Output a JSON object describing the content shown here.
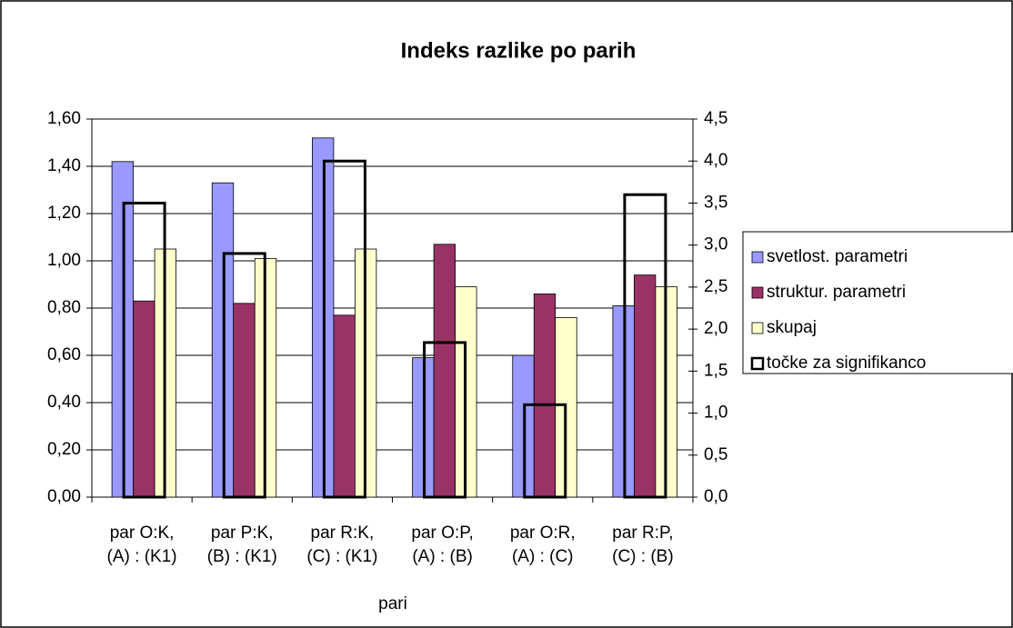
{
  "chart_data": {
    "type": "bar",
    "title": "Indeks razlike po parih",
    "x_label": "pari",
    "categories": [
      "par O:K,\n(A) : (K1)",
      "par P:K,\n(B) : (K1)",
      "par R:K,\n(C) : (K1)",
      "par O:P,\n(A) : (B)",
      "par O:R,\n(A) : (C)",
      "par R:P,\n(C) : (B)"
    ],
    "series": [
      {
        "name": "svetlost. parametri",
        "color": "#9999ff",
        "values": [
          1.42,
          1.33,
          1.52,
          0.59,
          0.6,
          0.81
        ]
      },
      {
        "name": "struktur. parametri",
        "color": "#993366",
        "values": [
          0.83,
          0.82,
          0.77,
          1.07,
          0.86,
          0.94
        ]
      },
      {
        "name": "skupaj",
        "color": "#ffffcc",
        "values": [
          1.05,
          1.01,
          1.05,
          0.89,
          0.76,
          0.89
        ]
      },
      {
        "name": "točke za signifikanco",
        "color": "#000000",
        "axis": "y2",
        "values": [
          3.5,
          2.9,
          4.0,
          1.84,
          1.1,
          3.6
        ]
      }
    ],
    "ylim": [
      0,
      1.6
    ],
    "yticks": [
      {
        "value": 0,
        "label": "0,00"
      },
      {
        "value": 0.2,
        "label": "0,20"
      },
      {
        "value": 0.4,
        "label": "0,40"
      },
      {
        "value": 0.6,
        "label": "0,60"
      },
      {
        "value": 0.8,
        "label": "0,80"
      },
      {
        "value": 1.0,
        "label": "1,00"
      },
      {
        "value": 1.2,
        "label": "1,20"
      },
      {
        "value": 1.4,
        "label": "1,40"
      },
      {
        "value": 1.6,
        "label": "1,60"
      }
    ],
    "y2lim": [
      0,
      4.5
    ],
    "y2ticks": [
      {
        "value": 0,
        "label": "0,0"
      },
      {
        "value": 0.5,
        "label": "0,5"
      },
      {
        "value": 1.0,
        "label": "1,0"
      },
      {
        "value": 1.5,
        "label": "1,5"
      },
      {
        "value": 2.0,
        "label": "2,0"
      },
      {
        "value": 2.5,
        "label": "2,5"
      },
      {
        "value": 3.0,
        "label": "3,0"
      },
      {
        "value": 3.5,
        "label": "3,5"
      },
      {
        "value": 4.0,
        "label": "4,0"
      },
      {
        "value": 4.5,
        "label": "4,5"
      }
    ],
    "grid": true,
    "legend": "right"
  }
}
